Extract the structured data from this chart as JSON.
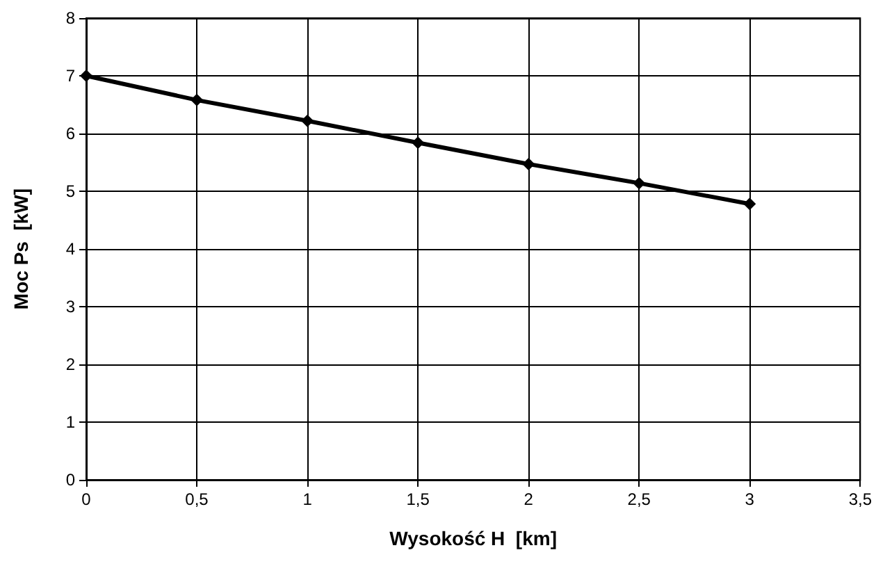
{
  "chart_data": {
    "type": "line",
    "xlabel": "Wysokość H  [km]",
    "ylabel": "Moc Ps  [kW]",
    "x": [
      0,
      0.5,
      1,
      1.5,
      2,
      2.5,
      3
    ],
    "series": [
      {
        "color": "#000000",
        "values": [
          7.0,
          6.58,
          6.22,
          5.84,
          5.47,
          5.14,
          4.78
        ]
      }
    ],
    "xlim": [
      0,
      3.5
    ],
    "xticks": [
      0,
      {
        "value": 0.5,
        "label": "0,5"
      },
      1,
      {
        "value": 1.5,
        "label": "1,5"
      },
      2,
      {
        "value": 2.5,
        "label": "2,5"
      },
      3,
      {
        "value": 3.5,
        "label": "3,5"
      }
    ],
    "ylim": [
      0,
      8
    ],
    "yticks": [
      0,
      1,
      2,
      3,
      4,
      5,
      6,
      7,
      8
    ],
    "grid": true,
    "marker": "diamond",
    "line_style": "solid"
  }
}
